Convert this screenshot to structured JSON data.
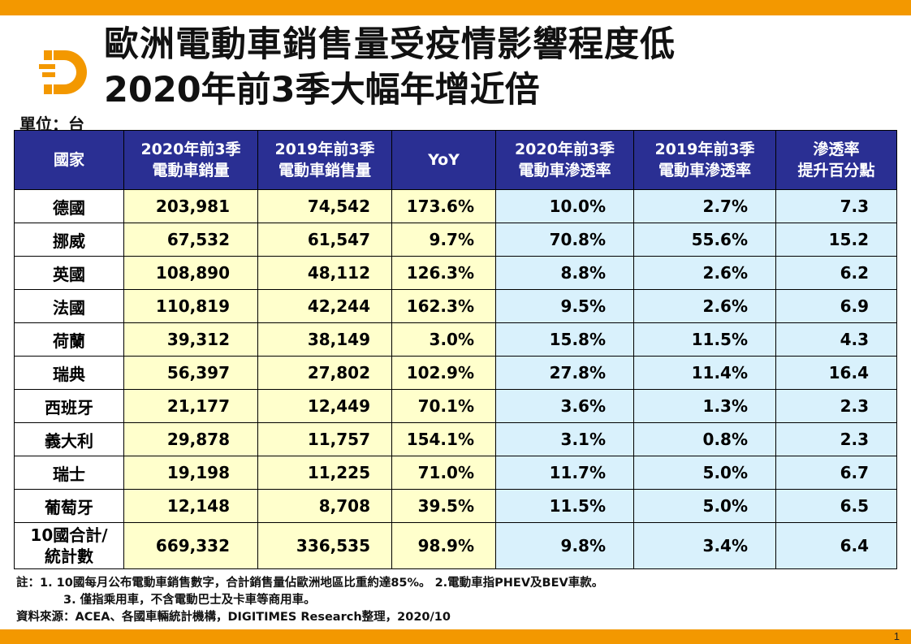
{
  "title": {
    "line1": "歐洲電動車銷售量受疫情影響程度低",
    "line2": "2020年前3季大幅年增近倍"
  },
  "unit": "單位：台",
  "table": {
    "headers": [
      "國家",
      "2020年前3季\n電動車銷量",
      "2019年前3季\n電動車銷售量",
      "YoY",
      "2020年前3季\n電動車滲透率",
      "2019年前3季\n電動車滲透率",
      "滲透率\n提升百分點"
    ],
    "header_lines": [
      [
        "國家"
      ],
      [
        "2020年前3季",
        "電動車銷量"
      ],
      [
        "2019年前3季",
        "電動車銷售量"
      ],
      [
        "YoY"
      ],
      [
        "2020年前3季",
        "電動車滲透率"
      ],
      [
        "2019年前3季",
        "電動車滲透率"
      ],
      [
        "滲透率",
        "提升百分點"
      ]
    ],
    "rows": [
      [
        "德國",
        "203,981",
        "74,542",
        "173.6%",
        "10.0%",
        "2.7%",
        "7.3"
      ],
      [
        "挪威",
        "67,532",
        "61,547",
        "9.7%",
        "70.8%",
        "55.6%",
        "15.2"
      ],
      [
        "英國",
        "108,890",
        "48,112",
        "126.3%",
        "8.8%",
        "2.6%",
        "6.2"
      ],
      [
        "法國",
        "110,819",
        "42,244",
        "162.3%",
        "9.5%",
        "2.6%",
        "6.9"
      ],
      [
        "荷蘭",
        "39,312",
        "38,149",
        "3.0%",
        "15.8%",
        "11.5%",
        "4.3"
      ],
      [
        "瑞典",
        "56,397",
        "27,802",
        "102.9%",
        "27.8%",
        "11.4%",
        "16.4"
      ],
      [
        "西班牙",
        "21,177",
        "12,449",
        "70.1%",
        "3.6%",
        "1.3%",
        "2.3"
      ],
      [
        "義大利",
        "29,878",
        "11,757",
        "154.1%",
        "3.1%",
        "0.8%",
        "2.3"
      ],
      [
        "瑞士",
        "19,198",
        "11,225",
        "71.0%",
        "11.7%",
        "5.0%",
        "6.7"
      ],
      [
        "葡萄牙",
        "12,148",
        "8,708",
        "39.5%",
        "11.5%",
        "5.0%",
        "6.5"
      ]
    ],
    "total": {
      "label_lines": [
        "10國合計/",
        "統計數"
      ],
      "values": [
        "669,332",
        "336,535",
        "98.9%",
        "9.8%",
        "3.4%",
        "6.4"
      ]
    }
  },
  "notes": {
    "line1": "註：1. 10國每月公布電動車銷售數字，合計銷售量佔歐洲地區比重約達85%。 2.電動車指PHEV及BEV車款。",
    "line2": "3. 僅指乘用車，不含電動巴士及卡車等商用車。",
    "source": "資料來源：ACEA、各國車輛統計機構，DIGITIMES Research整理，2020/10"
  },
  "page_number": "1",
  "colors": {
    "accent_orange": "#f39800",
    "header_blue": "#2a2f93",
    "sales_yellow": "#ffffcc",
    "penetration_blue": "#d9f1fc"
  },
  "icons": {
    "logo": "digitimes-d-logo"
  }
}
